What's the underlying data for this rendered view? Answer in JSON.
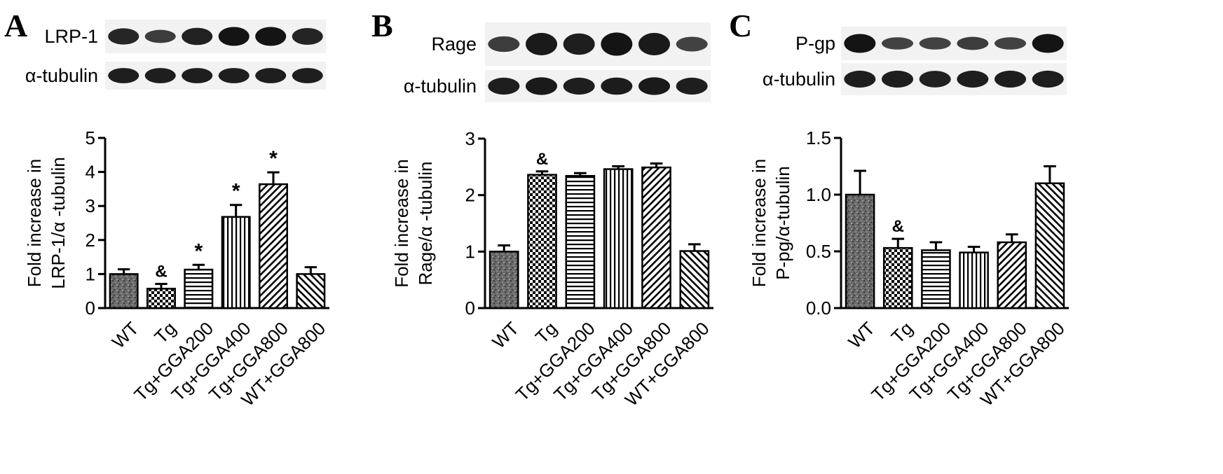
{
  "colors": {
    "bar_stroke": "#000000",
    "blot_bg": "#f2f2f2",
    "band": "#141414",
    "dark_fill": "#555555"
  },
  "chart_data": [
    {
      "panel": "A",
      "type": "bar",
      "blots": [
        {
          "label": "LRP-1",
          "intensities": [
            0.82,
            0.6,
            0.88,
            1.0,
            1.0,
            0.85
          ]
        },
        {
          "label": "α-tubulin",
          "intensities": [
            0.9,
            0.9,
            0.9,
            0.9,
            0.9,
            0.9
          ]
        }
      ],
      "categories": [
        "WT",
        "Tg",
        "Tg+GGA200",
        "Tg+GGA400",
        "Tg+GGA800",
        "WT+GGA800"
      ],
      "values": [
        1.0,
        0.57,
        1.13,
        2.68,
        3.64,
        1.0
      ],
      "errors": [
        0.14,
        0.14,
        0.14,
        0.35,
        0.35,
        0.2
      ],
      "marks": [
        "",
        "&",
        "*",
        "*",
        "*",
        ""
      ],
      "patterns": [
        "noise",
        "checker",
        "hlines",
        "vlines",
        "diag",
        "diag-alt"
      ],
      "ylabel_lines": [
        "Fold increase in",
        "LRP-1/α -tubulin"
      ],
      "ylim": [
        0,
        5
      ],
      "yticks": [
        "0",
        "1",
        "2",
        "3",
        "4",
        "5"
      ]
    },
    {
      "panel": "B",
      "type": "bar",
      "blots": [
        {
          "label": "Rage",
          "intensities": [
            0.6,
            0.95,
            0.9,
            1.0,
            0.95,
            0.55
          ]
        },
        {
          "label": "α-tubulin",
          "intensities": [
            0.9,
            0.95,
            0.9,
            0.92,
            0.95,
            0.9
          ]
        }
      ],
      "categories": [
        "WT",
        "Tg",
        "Tg+GGA200",
        "Tg+GGA400",
        "Tg+GGA800",
        "WT+GGA800"
      ],
      "values": [
        1.0,
        2.36,
        2.34,
        2.46,
        2.49,
        1.01
      ],
      "errors": [
        0.11,
        0.06,
        0.05,
        0.05,
        0.07,
        0.12
      ],
      "marks": [
        "",
        "&",
        "",
        "",
        "",
        ""
      ],
      "patterns": [
        "noise",
        "checker",
        "hlines",
        "vlines",
        "diag",
        "diag-alt"
      ],
      "ylabel_lines": [
        "Fold increase in",
        "Rage/α -tubulin"
      ],
      "ylim": [
        0,
        3
      ],
      "yticks": [
        "0",
        "1",
        "2",
        "3"
      ]
    },
    {
      "panel": "C",
      "type": "bar",
      "blots": [
        {
          "label": "P-gp",
          "intensities": [
            1.0,
            0.55,
            0.55,
            0.6,
            0.55,
            1.0
          ]
        },
        {
          "label": "α-tubulin",
          "intensities": [
            0.9,
            0.9,
            0.88,
            0.9,
            0.9,
            0.9
          ]
        }
      ],
      "categories": [
        "WT",
        "Tg",
        "Tg+GGA200",
        "Tg+GGA400",
        "Tg+GGA800",
        "WT+GGA800"
      ],
      "values": [
        1.0,
        0.53,
        0.51,
        0.49,
        0.58,
        1.1
      ],
      "errors": [
        0.21,
        0.08,
        0.07,
        0.05,
        0.07,
        0.15
      ],
      "marks": [
        "",
        "&",
        "",
        "",
        "",
        ""
      ],
      "patterns": [
        "noise",
        "checker",
        "hlines",
        "vlines",
        "diag",
        "diag-alt"
      ],
      "ylabel_lines": [
        "Fold increase in",
        "P-pg/α-tubulin"
      ],
      "ylim": [
        0,
        1.5
      ],
      "yticks": [
        "0.0",
        "0.5",
        "1.0",
        "1.5"
      ]
    }
  ]
}
